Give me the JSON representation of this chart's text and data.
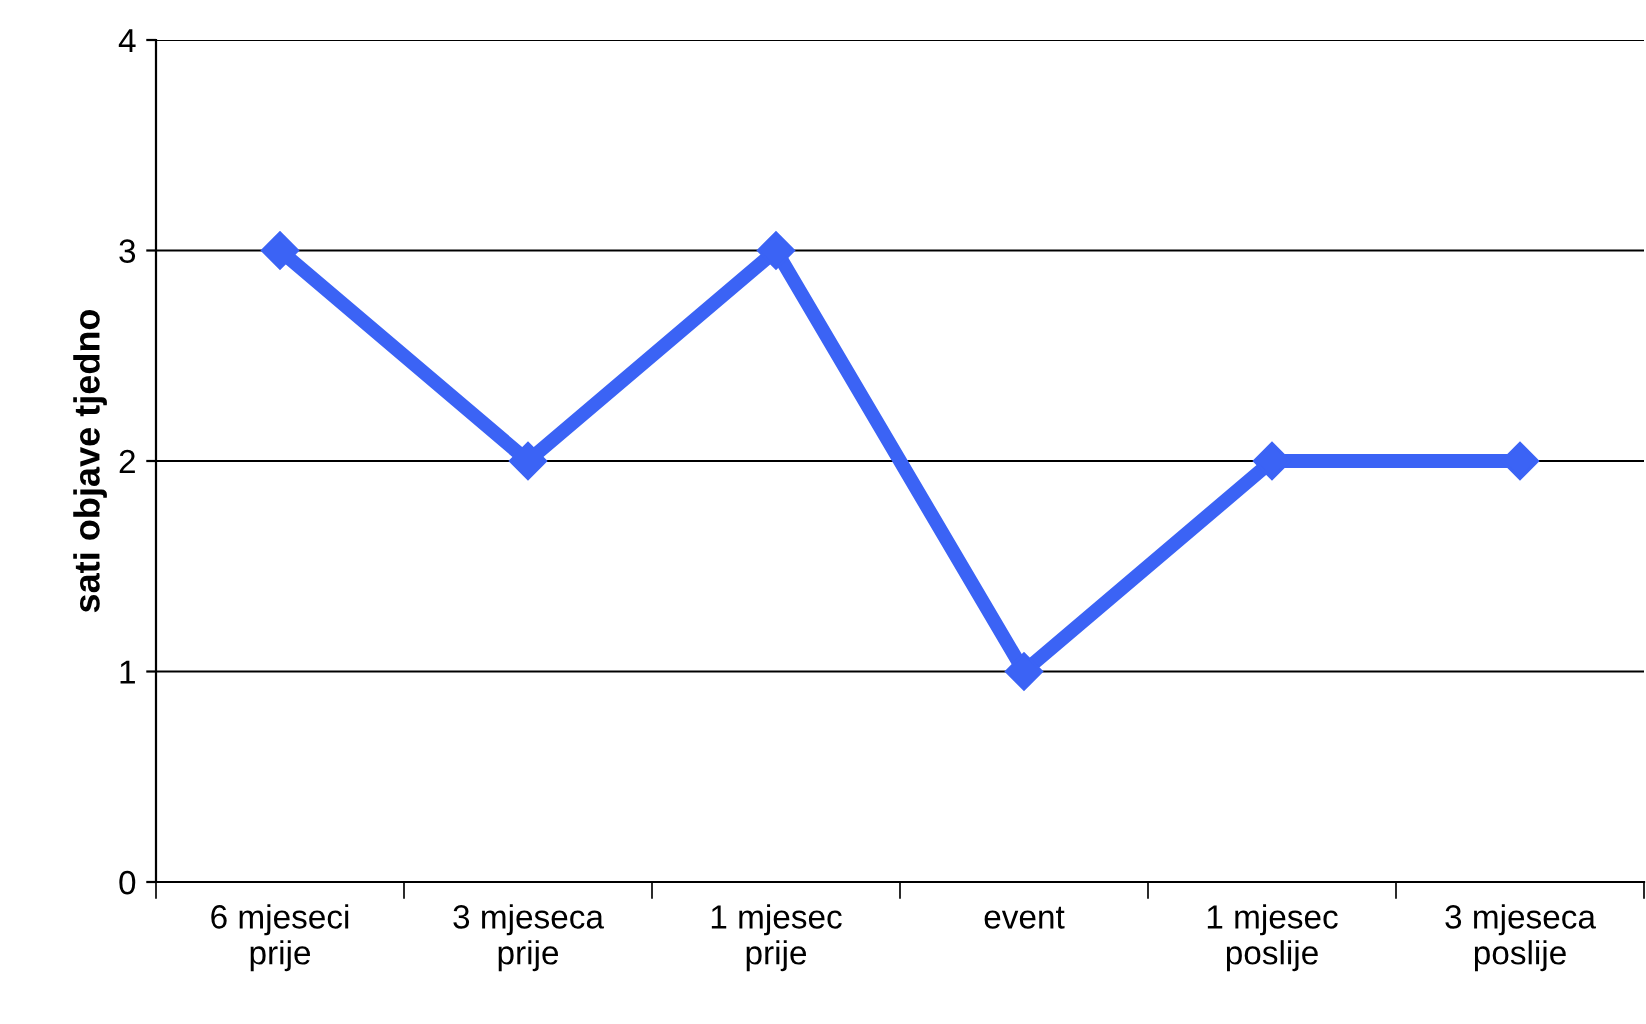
{
  "chart_data": {
    "type": "line",
    "ylabel": "sati objave tjedno",
    "categories": [
      "6 mjeseci\nprije",
      "3 mjeseca\nprije",
      "1 mjesec\nprije",
      "event",
      "1 mjesec\nposlije",
      "3 mjeseca\nposlije"
    ],
    "series": [
      {
        "color": "#3b63f5",
        "values": [
          3,
          2,
          3,
          1,
          2,
          2
        ]
      }
    ],
    "ylim": [
      0,
      4
    ],
    "yticks": [
      0,
      1,
      2,
      3,
      4
    ],
    "grid": "y",
    "marker": "diamond",
    "line_style": "solid",
    "legend": false
  }
}
